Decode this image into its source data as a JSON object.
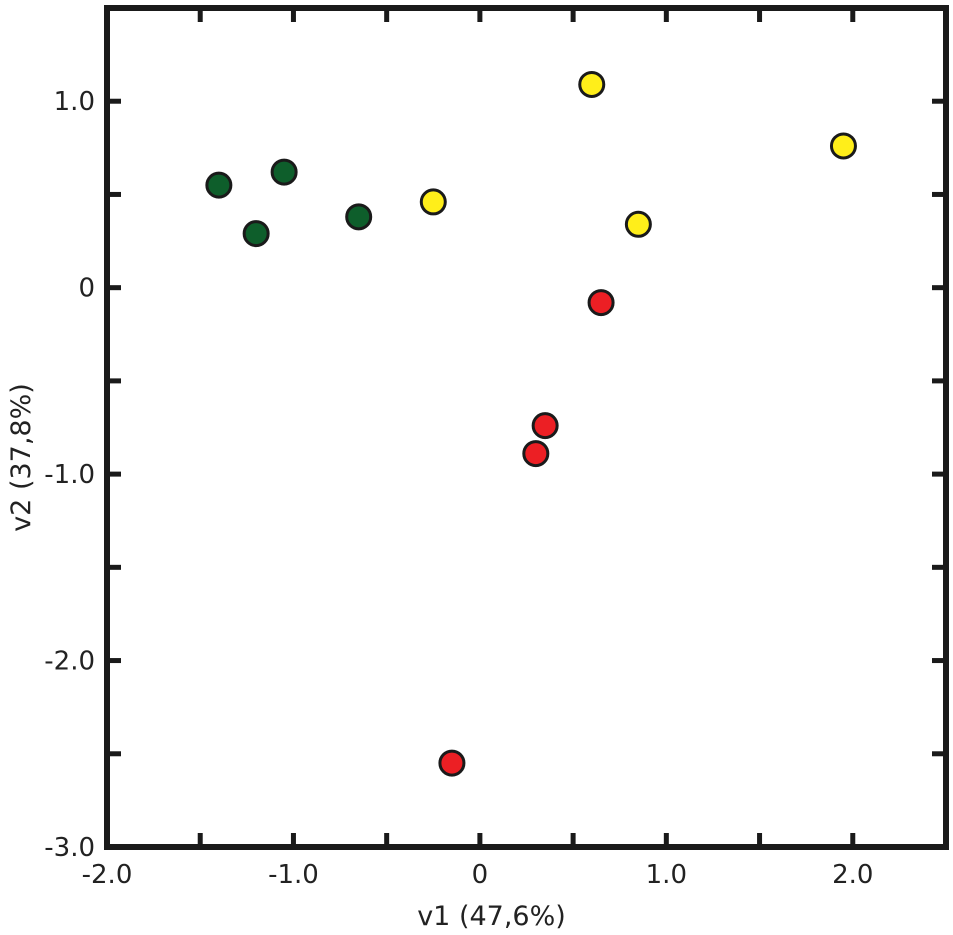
{
  "chart_data": {
    "type": "scatter",
    "title": "",
    "xlabel": "v1 (47,6%)",
    "ylabel": "v2 (37,8%)",
    "xlim": [
      -2.0,
      2.5
    ],
    "ylim": [
      -3.0,
      1.5
    ],
    "grid": false,
    "legend": "none",
    "x_ticks": [
      {
        "value": -2.0,
        "label": "-2.0"
      },
      {
        "value": -1.5,
        "label": ""
      },
      {
        "value": -1.0,
        "label": "-1.0"
      },
      {
        "value": -0.5,
        "label": ""
      },
      {
        "value": 0,
        "label": "0"
      },
      {
        "value": 0.5,
        "label": ""
      },
      {
        "value": 1.0,
        "label": "1.0"
      },
      {
        "value": 1.5,
        "label": ""
      },
      {
        "value": 2.0,
        "label": "2.0"
      }
    ],
    "y_ticks": [
      {
        "value": 1.0,
        "label": "1.0"
      },
      {
        "value": 0.5,
        "label": ""
      },
      {
        "value": 0,
        "label": "0"
      },
      {
        "value": -0.5,
        "label": ""
      },
      {
        "value": -1.0,
        "label": "-1.0"
      },
      {
        "value": -1.5,
        "label": ""
      },
      {
        "value": -2.0,
        "label": "-2.0"
      },
      {
        "value": -2.5,
        "label": ""
      },
      {
        "value": -3.0,
        "label": "-3.0"
      }
    ],
    "series": [
      {
        "color": "#0e5e2b",
        "points": [
          {
            "x": -1.4,
            "y": 0.55
          },
          {
            "x": -1.05,
            "y": 0.62
          },
          {
            "x": -1.2,
            "y": 0.29
          },
          {
            "x": -0.65,
            "y": 0.38
          }
        ]
      },
      {
        "color": "#ffee1a",
        "points": [
          {
            "x": -0.25,
            "y": 0.46
          },
          {
            "x": 0.6,
            "y": 1.09
          },
          {
            "x": 0.85,
            "y": 0.34
          },
          {
            "x": 1.95,
            "y": 0.76
          }
        ]
      },
      {
        "color": "#ec1f24",
        "points": [
          {
            "x": 0.65,
            "y": -0.08
          },
          {
            "x": 0.35,
            "y": -0.74
          },
          {
            "x": 0.3,
            "y": -0.89
          },
          {
            "x": -0.15,
            "y": -2.55
          }
        ]
      }
    ]
  }
}
